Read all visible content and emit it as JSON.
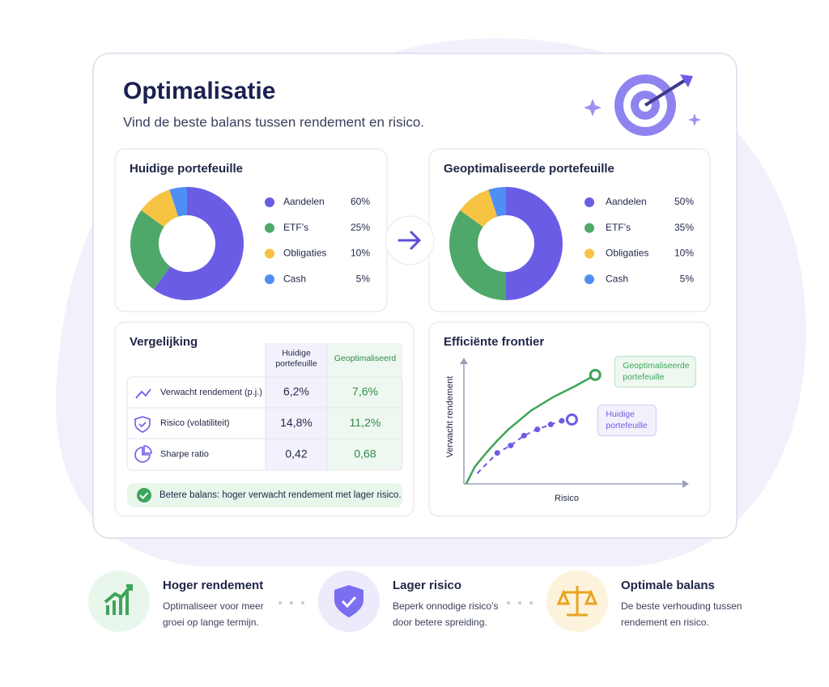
{
  "header": {
    "title": "Optimalisatie",
    "subtitle": "Vind de beste balans tussen rendement en risico."
  },
  "chart_data": [
    {
      "type": "donut",
      "title": "Huidige portefeuille",
      "categories": [
        "Aandelen",
        "ETF’s",
        "Obligaties",
        "Cash"
      ],
      "values": [
        60,
        25,
        10,
        5
      ],
      "value_labels": [
        "60%",
        "25%",
        "10%",
        "5%"
      ],
      "colors": [
        "#6b5ce6",
        "#4ea86a",
        "#f6c342",
        "#4f8ef5"
      ]
    },
    {
      "type": "donut",
      "title": "Geoptimaliseerde portefeuille",
      "categories": [
        "Aandelen",
        "ETF’s",
        "Obligaties",
        "Cash"
      ],
      "values": [
        50,
        35,
        10,
        5
      ],
      "value_labels": [
        "50%",
        "35%",
        "10%",
        "5%"
      ],
      "colors": [
        "#6b5ce6",
        "#4ea86a",
        "#f6c342",
        "#4f8ef5"
      ]
    },
    {
      "type": "line",
      "title": "Efficiënte frontier",
      "xlabel": "Risico",
      "ylabel": "Verwacht rendement",
      "xlim": [
        0,
        10
      ],
      "ylim": [
        0,
        10
      ],
      "series": [
        {
          "color": "#3fa45b",
          "style": "solid",
          "markers": false,
          "x": [
            0.1,
            0.5,
            1,
            1.5,
            2,
            3,
            4,
            5,
            5.9
          ],
          "values": [
            0,
            1.4,
            2.5,
            3.5,
            4.4,
            5.9,
            7,
            7.9,
            8.8
          ]
        },
        {
          "color": "#6b5ce6",
          "style": "dashed",
          "markers": true,
          "x": [
            0.6,
            1.5,
            2.1,
            2.7,
            3.3,
            3.9,
            4.4,
            4.85
          ],
          "values": [
            0.85,
            2.5,
            3.1,
            3.9,
            4.4,
            4.8,
            5.1,
            5.2
          ]
        }
      ],
      "annotations": [
        {
          "series": 0,
          "text": [
            "Geoptimaliseerde",
            "portefeuille"
          ]
        },
        {
          "series": 1,
          "text": [
            "Huidige",
            "portefeuille"
          ]
        }
      ]
    }
  ],
  "comparison": {
    "title": "Vergelijking",
    "columns": [
      [
        "Huidige",
        "portefeuille"
      ],
      "Geoptimaliseerd"
    ],
    "rows": [
      {
        "label": "Verwacht rendement (p.j.)",
        "values": [
          "6,2%",
          "7,6%"
        ]
      },
      {
        "label": "Risico (volatiliteit)",
        "values": [
          "14,8%",
          "11,2%"
        ]
      },
      {
        "label": "Sharpe ratio",
        "values": [
          "0,42",
          "0,68"
        ]
      }
    ],
    "note": "Betere balans: hoger verwacht rendement met lager risico."
  },
  "features": [
    {
      "title": "Hoger rendement",
      "text": [
        "Optimaliseer voor meer",
        "groei op lange termijn."
      ]
    },
    {
      "title": "Lager risico",
      "text": [
        "Beperk onnodige risico’s",
        "door betere spreiding."
      ]
    },
    {
      "title": "Optimale balans",
      "text": [
        "De beste verhouding tussen",
        "rendement en risico."
      ]
    }
  ]
}
